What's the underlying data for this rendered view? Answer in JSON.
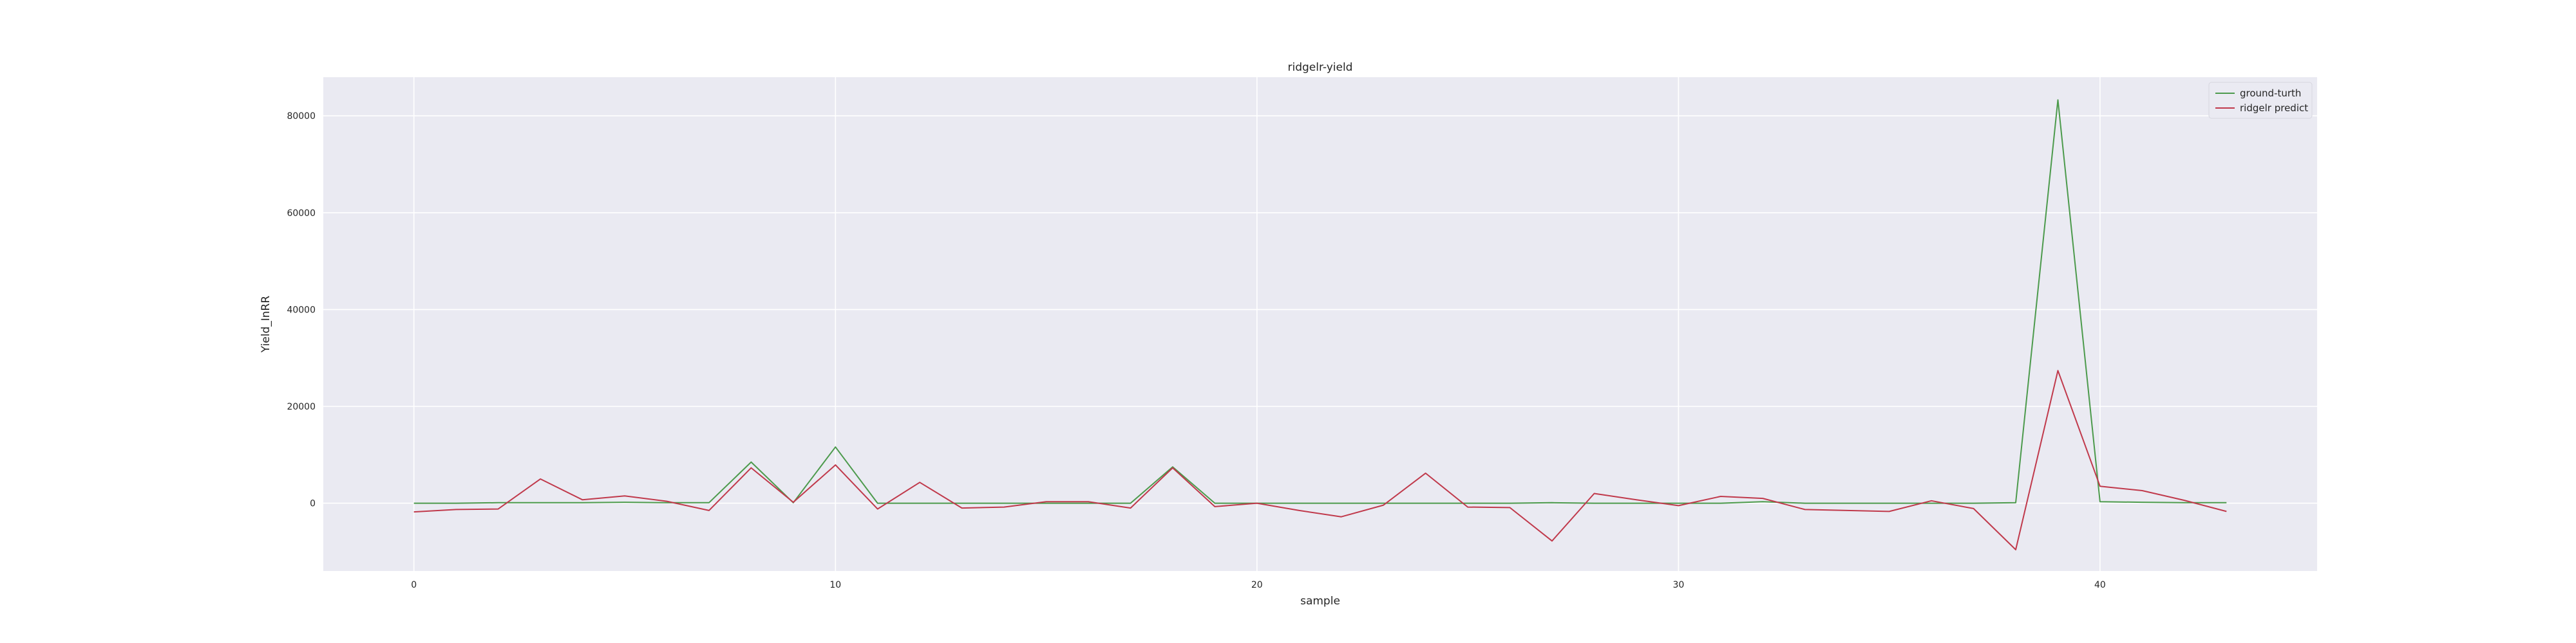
{
  "chart_data": {
    "type": "line",
    "title": "ridgelr-yield",
    "xlabel": "sample",
    "ylabel": "Yield_InRR",
    "xlim": [
      -2.15,
      45.15
    ],
    "ylim": [
      -14000,
      88000
    ],
    "xticks": [
      0,
      10,
      20,
      30,
      40
    ],
    "yticks": [
      0,
      20000,
      40000,
      60000,
      80000
    ],
    "grid": true,
    "legend_position": "top-right",
    "x": [
      0,
      1,
      2,
      3,
      4,
      5,
      6,
      7,
      8,
      9,
      10,
      11,
      12,
      13,
      14,
      15,
      16,
      17,
      18,
      19,
      20,
      21,
      22,
      23,
      24,
      25,
      26,
      27,
      28,
      29,
      30,
      31,
      32,
      33,
      34,
      35,
      36,
      37,
      38,
      39,
      40,
      41,
      42,
      43
    ],
    "series": [
      {
        "name": "ground-turth",
        "color": "#4c9a4c",
        "values": [
          0,
          0,
          100,
          100,
          100,
          200,
          100,
          100,
          8500,
          100,
          11600,
          0,
          0,
          0,
          0,
          0,
          0,
          0,
          7500,
          0,
          0,
          0,
          0,
          0,
          0,
          0,
          0,
          100,
          0,
          0,
          0,
          0,
          300,
          0,
          0,
          0,
          0,
          0,
          100,
          83300,
          300,
          200,
          100,
          100
        ]
      },
      {
        "name": "ridgelr predict",
        "color": "#c0394b",
        "values": [
          -1800,
          -1300,
          -1200,
          5000,
          700,
          1500,
          400,
          -1500,
          7300,
          200,
          7900,
          -1200,
          4300,
          -1000,
          -800,
          300,
          300,
          -1000,
          7300,
          -700,
          0,
          -1500,
          -2800,
          -400,
          6200,
          -800,
          -900,
          -7800,
          2000,
          700,
          -500,
          1400,
          1000,
          -1300,
          -1500,
          -1700,
          500,
          -1100,
          -9600,
          27400,
          3500,
          2600,
          600,
          -1700
        ]
      }
    ]
  }
}
